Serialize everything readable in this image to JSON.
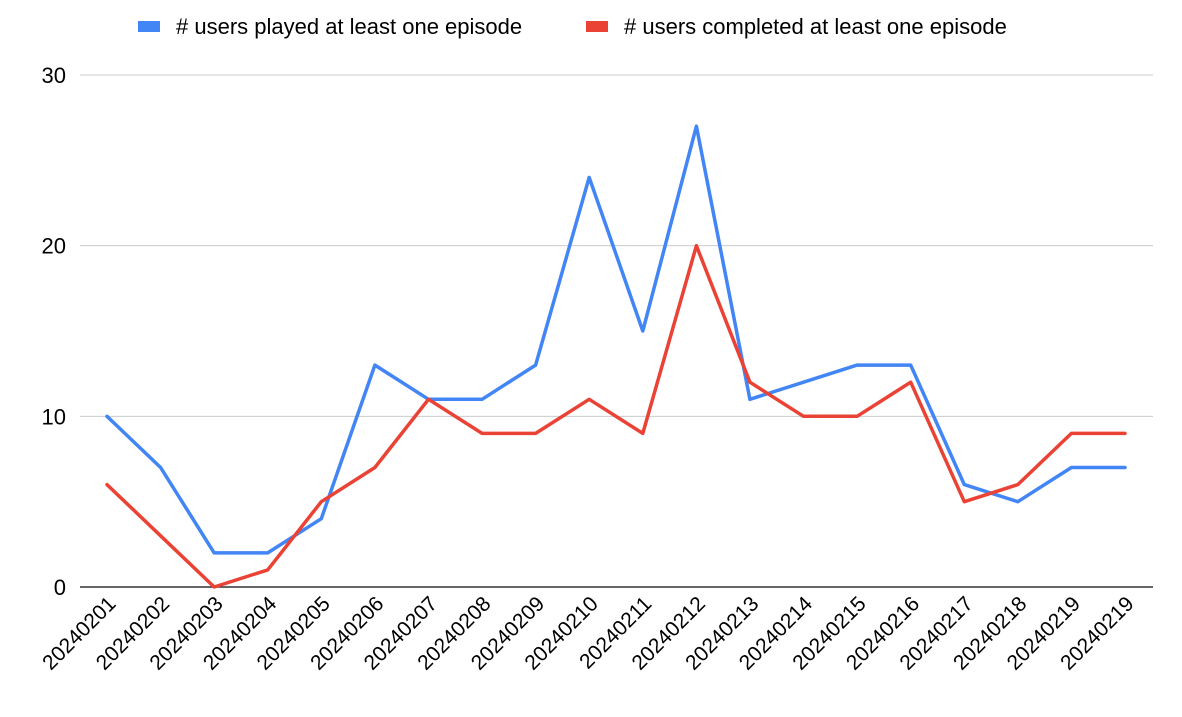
{
  "chart_data": {
    "type": "line",
    "categories": [
      "20240201",
      "20240202",
      "20240203",
      "20240204",
      "20240205",
      "20240206",
      "20240207",
      "20240208",
      "20240209",
      "20240210",
      "20240211",
      "20240212",
      "20240213",
      "20240214",
      "20240215",
      "20240216",
      "20240217",
      "20240218",
      "20240219",
      "20240219"
    ],
    "series": [
      {
        "name": "# users played at least one episode",
        "color": "#4285F4",
        "values": [
          10,
          7,
          2,
          2,
          4,
          13,
          11,
          11,
          13,
          24,
          15,
          27,
          11,
          12,
          13,
          13,
          6,
          5,
          7,
          7
        ]
      },
      {
        "name": "# users completed at least one episode",
        "color": "#EA4335",
        "values": [
          6,
          3,
          0,
          1,
          5,
          7,
          11,
          9,
          9,
          11,
          9,
          20,
          12,
          10,
          10,
          12,
          5,
          6,
          9,
          9
        ]
      }
    ],
    "yticks": [
      "0",
      "10",
      "20",
      "30"
    ],
    "ylim": [
      0,
      30
    ],
    "grid": true,
    "legend_position": "top-center",
    "title": "",
    "xlabel": "",
    "ylabel": ""
  }
}
